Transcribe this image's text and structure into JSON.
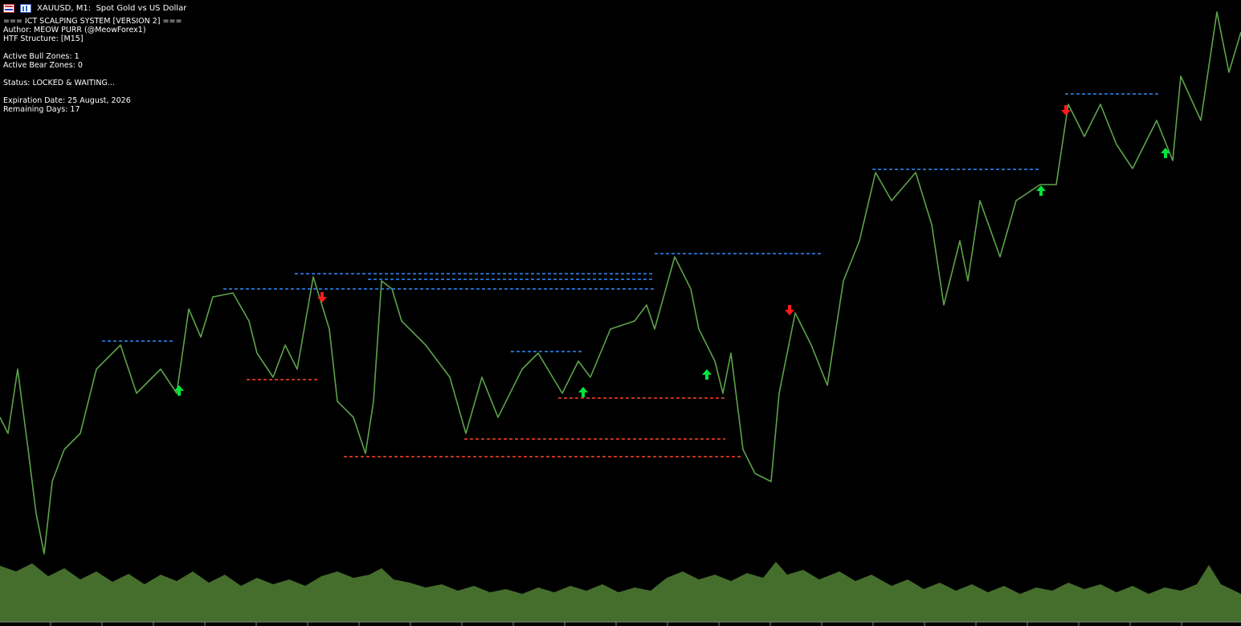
{
  "header": {
    "title": "XAUUSD, M1:  Spot Gold vs US Dollar"
  },
  "info": {
    "lines": [
      "=== ICT SCALPING SYSTEM [VERSION 2] ===",
      "Author: MEOW PURR (@MeowForex1)",
      "HTF Structure: [M15]",
      "Active Bull Zones: 1",
      "Active Bear Zones: 0",
      "Status: LOCKED & WAITING...",
      "Expiration Date: 25 August, 2026",
      "Remaining Days: 17"
    ]
  }
}
